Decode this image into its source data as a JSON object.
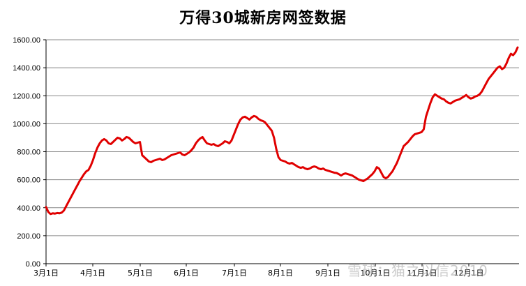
{
  "chart_data": {
    "type": "line",
    "title": "万得30城新房网签数据",
    "xlabel": "",
    "ylabel": "",
    "ylim": [
      0,
      1600
    ],
    "yticks": [
      "0.00",
      "200.00",
      "400.00",
      "600.00",
      "800.00",
      "1000.00",
      "1200.00",
      "1400.00",
      "1600.00"
    ],
    "xticks": [
      "3月1日",
      "4月1日",
      "5月1日",
      "6月1日",
      "7月1日",
      "8月1日",
      "9月1日",
      "10月1日",
      "11月1日",
      "12月1日"
    ],
    "grid": true,
    "legend": "none",
    "line_color": "#e00000",
    "series": [
      {
        "values": [
          405,
          370,
          355,
          360,
          358,
          362,
          360,
          365,
          380,
          410,
          440,
          470,
          500,
          530,
          560,
          590,
          615,
          640,
          660,
          670,
          700,
          740,
          790,
          830,
          860,
          880,
          890,
          880,
          860,
          855,
          870,
          885,
          900,
          895,
          880,
          890,
          905,
          900,
          885,
          870,
          860,
          865,
          870,
          775,
          760,
          745,
          730,
          725,
          735,
          740,
          745,
          750,
          740,
          745,
          755,
          765,
          775,
          780,
          785,
          790,
          795,
          780,
          775,
          785,
          795,
          810,
          830,
          860,
          880,
          895,
          905,
          880,
          860,
          855,
          850,
          855,
          845,
          840,
          850,
          860,
          875,
          870,
          860,
          880,
          920,
          960,
          1000,
          1030,
          1045,
          1050,
          1040,
          1030,
          1045,
          1055,
          1050,
          1035,
          1025,
          1020,
          1010,
          990,
          970,
          950,
          900,
          820,
          760,
          740,
          735,
          730,
          720,
          715,
          720,
          710,
          700,
          690,
          685,
          690,
          680,
          675,
          680,
          690,
          695,
          690,
          680,
          675,
          680,
          670,
          665,
          660,
          655,
          650,
          648,
          640,
          630,
          640,
          645,
          640,
          635,
          630,
          620,
          610,
          600,
          595,
          590,
          600,
          610,
          625,
          640,
          660,
          690,
          680,
          650,
          620,
          610,
          620,
          640,
          660,
          690,
          720,
          760,
          800,
          840,
          855,
          870,
          890,
          910,
          925,
          930,
          935,
          940,
          960,
          1050,
          1100,
          1150,
          1190,
          1210,
          1200,
          1190,
          1180,
          1175,
          1160,
          1150,
          1145,
          1155,
          1165,
          1170,
          1175,
          1185,
          1195,
          1205,
          1190,
          1180,
          1185,
          1195,
          1200,
          1210,
          1230,
          1260,
          1290,
          1320,
          1340,
          1360,
          1380,
          1400,
          1410,
          1390,
          1400,
          1430,
          1470,
          1500,
          1490,
          1510,
          1545
        ]
      }
    ]
  },
  "watermark": "雪球：猫之以信2010"
}
